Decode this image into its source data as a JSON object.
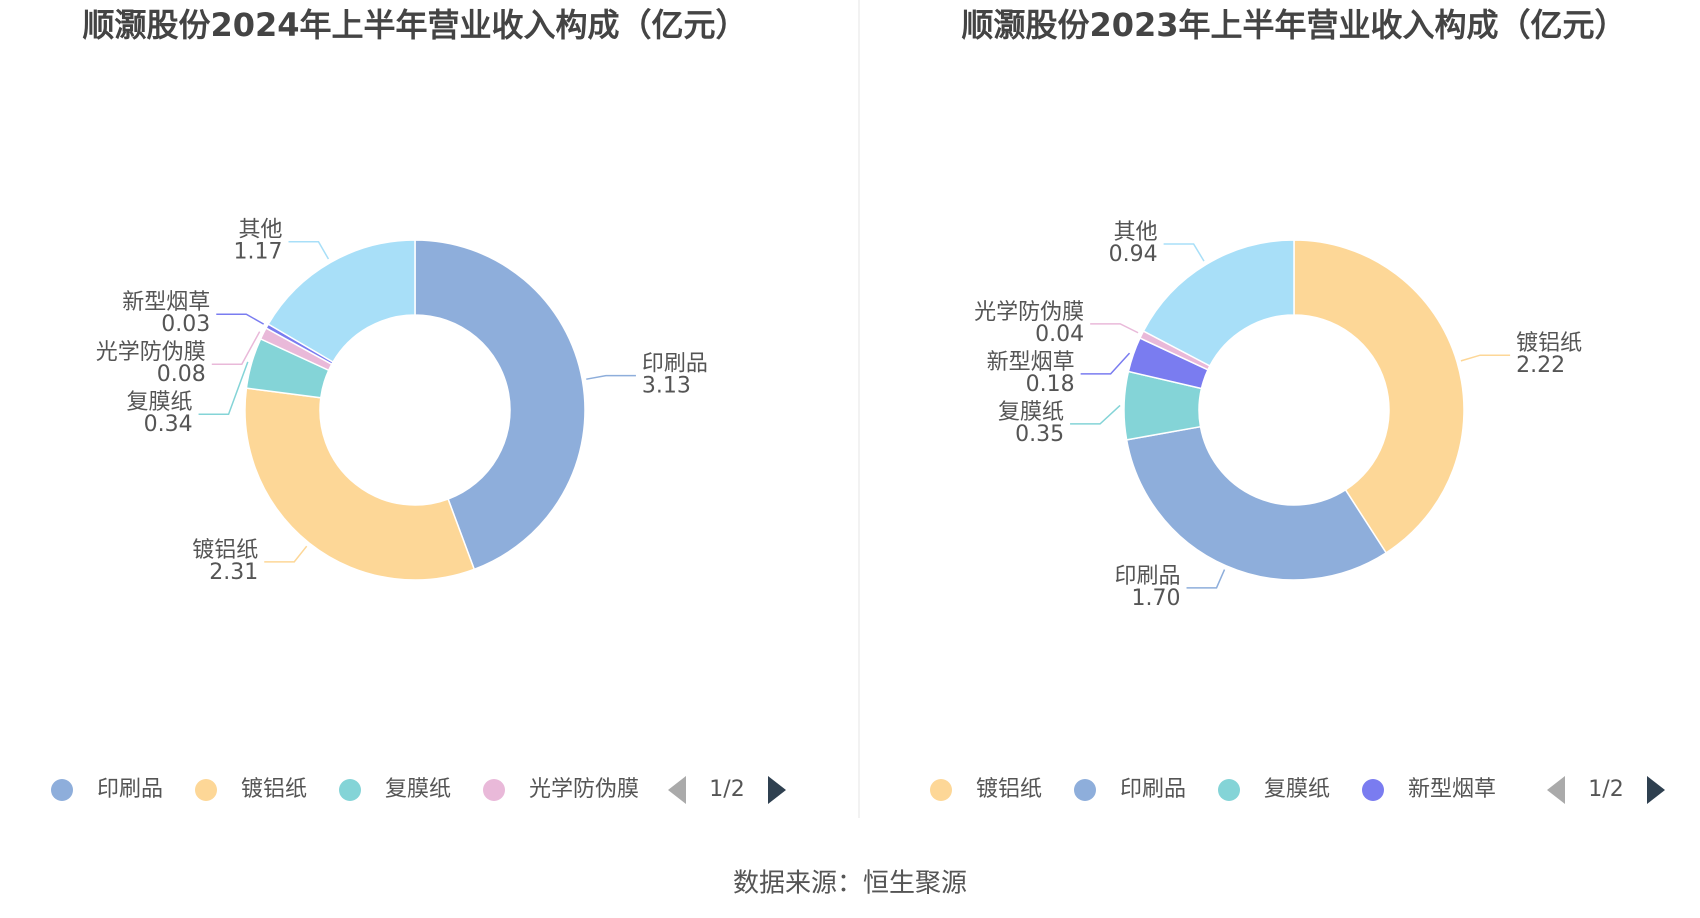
{
  "chart_data": [
    {
      "type": "pie",
      "title": "顺灏股份2024年上半年营业收入构成（亿元）",
      "categories": [
        "印刷品",
        "镀铝纸",
        "复膜纸",
        "光学防伪膜",
        "新型烟草",
        "其他"
      ],
      "values": [
        3.13,
        2.31,
        0.34,
        0.08,
        0.03,
        1.17
      ],
      "value_labels": [
        "3.13",
        "2.31",
        "0.34",
        "0.08",
        "0.03",
        "1.17"
      ],
      "colors": [
        "#8eaedb",
        "#fdd797",
        "#84d4d7",
        "#e9b9d9",
        "#7a7cf0",
        "#a8dff8"
      ],
      "legend_page": "1/2"
    },
    {
      "type": "pie",
      "title": "顺灏股份2023年上半年营业收入构成（亿元）",
      "categories": [
        "镀铝纸",
        "印刷品",
        "复膜纸",
        "新型烟草",
        "光学防伪膜",
        "其他"
      ],
      "values": [
        2.22,
        1.7,
        0.35,
        0.18,
        0.04,
        0.94
      ],
      "value_labels": [
        "2.22",
        "1.70",
        "0.35",
        "0.18",
        "0.04",
        "0.94"
      ],
      "colors": [
        "#fdd797",
        "#8eaedb",
        "#84d4d7",
        "#7a7cf0",
        "#e9b9d9",
        "#a8dff8"
      ],
      "legend_page": "1/2"
    }
  ],
  "source": "数据来源：恒生聚源"
}
